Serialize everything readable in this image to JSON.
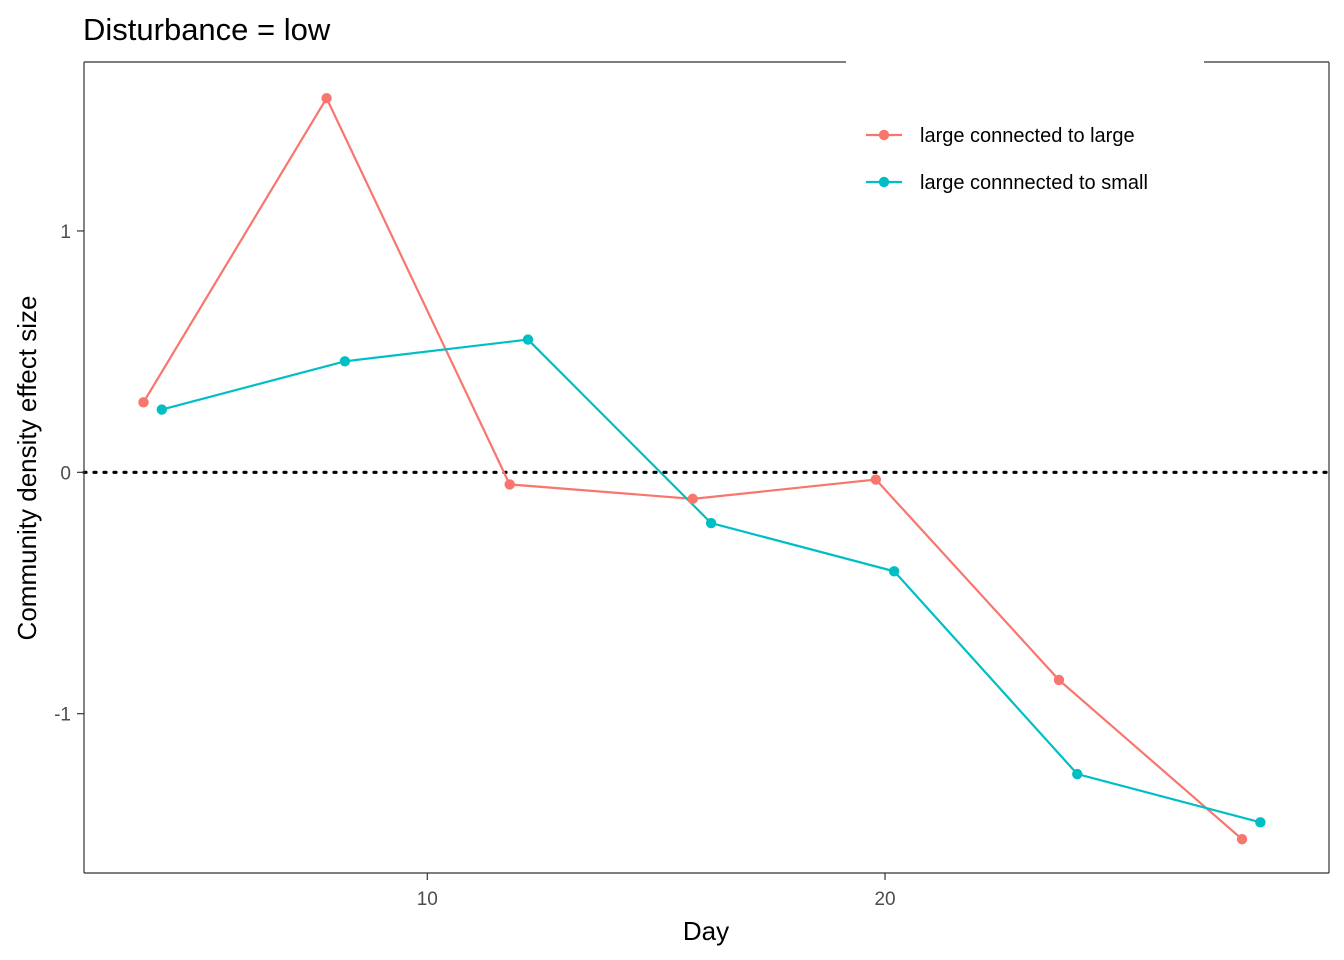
{
  "chart_data": {
    "type": "line",
    "title": "Disturbance = low",
    "xlabel": "Day",
    "ylabel": "Community density effect size",
    "xlim": [
      2.5,
      29.7
    ],
    "ylim": [
      -1.66,
      1.7
    ],
    "xticks": [
      10,
      20
    ],
    "yticks": [
      -1,
      0,
      1
    ],
    "xtick_labels": [
      "10",
      "20"
    ],
    "ytick_labels": [
      "-1",
      "0",
      "1"
    ],
    "reference_line": {
      "y": 0,
      "style": "dotted",
      "color": "#000000"
    },
    "grid": false,
    "legend_position": "top-right (inside plot)",
    "series": [
      {
        "name": "large connected to large",
        "color": "#F8766D",
        "x": [
          3.8,
          7.8,
          11.8,
          15.8,
          19.8,
          23.8,
          27.8
        ],
        "y": [
          0.29,
          1.55,
          -0.05,
          -0.11,
          -0.03,
          -0.86,
          -1.52
        ]
      },
      {
        "name": "large connnected to small",
        "color": "#00BFC4",
        "x": [
          4.2,
          8.2,
          12.2,
          16.2,
          20.2,
          24.2,
          28.2
        ],
        "y": [
          0.26,
          0.46,
          0.55,
          -0.21,
          -0.41,
          -1.25,
          -1.45
        ]
      }
    ]
  }
}
